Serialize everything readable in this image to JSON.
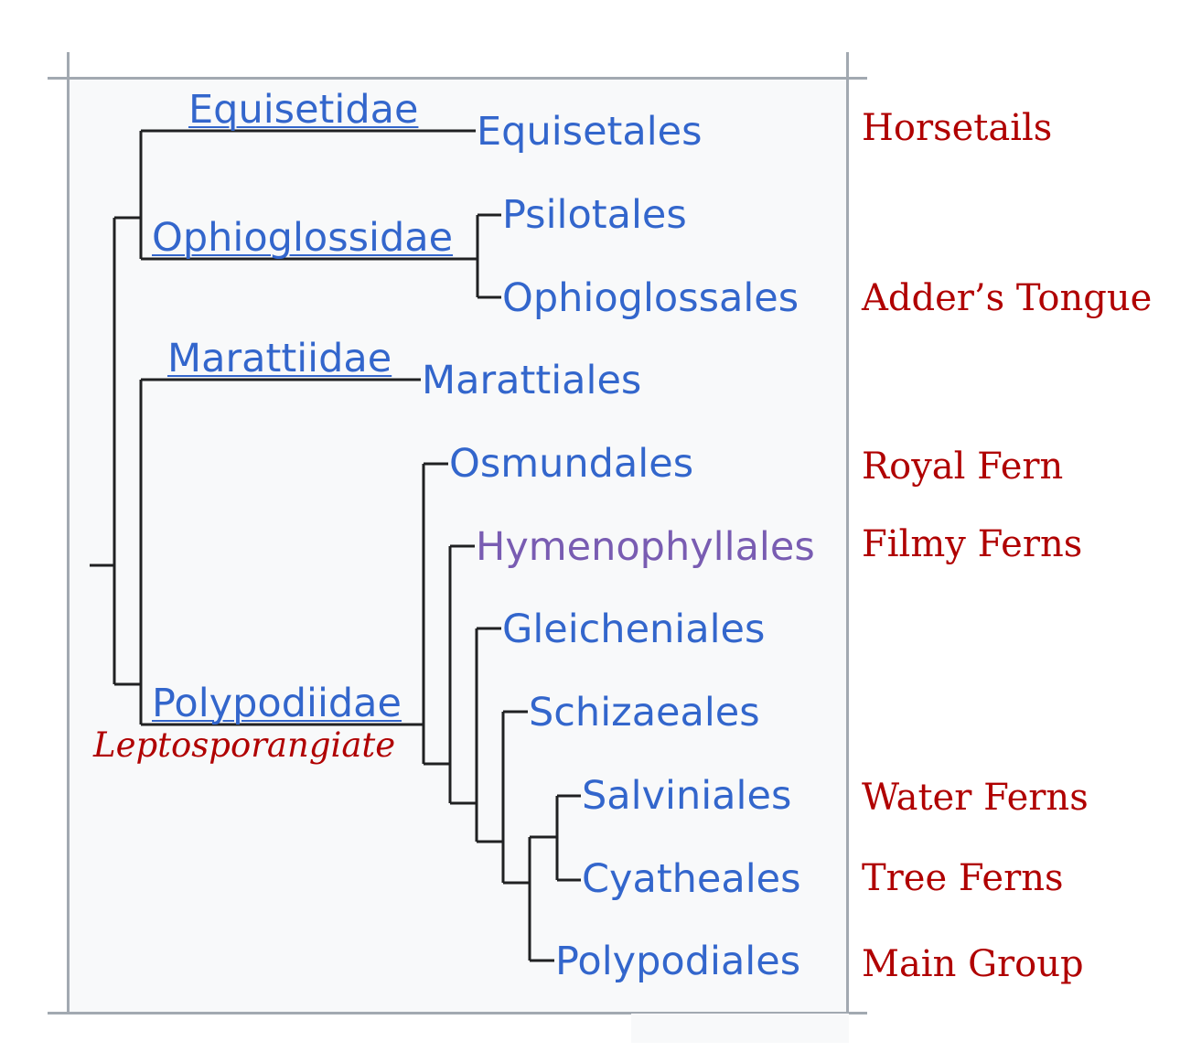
{
  "colors": {
    "link": "#3366cc",
    "visited_link": "#795cb2",
    "common_name": "#b00000",
    "branch": "#202122",
    "frame": "#a2a9b1",
    "background": "#f8f9fa"
  },
  "subclasses": {
    "equisetidae": "Equisetidae",
    "ophioglossidae": "Ophioglossidae",
    "marattiidae": "Marattiidae",
    "polypodiidae": "Polypodiidae",
    "polypodiidae_note": "Leptosporangiate"
  },
  "orders": {
    "equisetales": "Equisetales",
    "psilotales": "Psilotales",
    "ophioglossales": "Ophioglossales",
    "marattiales": "Marattiales",
    "osmundales": "Osmundales",
    "hymenophyllales": "Hymenophyllales",
    "gleicheniales": "Gleicheniales",
    "schizaeales": "Schizaeales",
    "salviniales": "Salviniales",
    "cyatheales": "Cyatheales",
    "polypodiales": "Polypodiales"
  },
  "common_names": {
    "horsetails": "Horsetails",
    "adders_tongue": "Adder’s Tongue",
    "royal_fern": "Royal Fern",
    "filmy_ferns": "Filmy Ferns",
    "water_ferns": "Water Ferns",
    "tree_ferns": "Tree Ferns",
    "main_group": "Main Group"
  }
}
